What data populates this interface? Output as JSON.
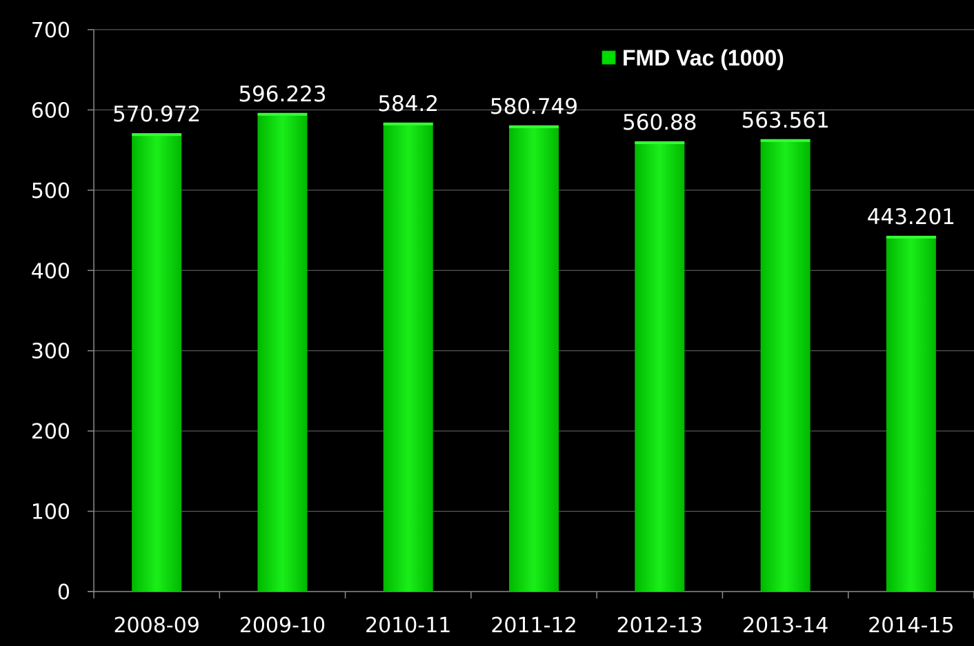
{
  "chart_data": {
    "type": "bar",
    "categories": [
      "2008-09",
      "2009-10",
      "2010-11",
      "2011-12",
      "2012-13",
      "2013-14",
      "2014-15"
    ],
    "series": [
      {
        "name": "FMD Vac (1000)",
        "values": [
          570.972,
          596.223,
          584.2,
          580.749,
          560.88,
          563.561,
          443.201
        ],
        "labels": [
          "570.972",
          "596.223",
          "584.2",
          "580.749",
          "560.88",
          "563.561",
          "443.201"
        ]
      }
    ],
    "yticks": [
      0,
      100,
      200,
      300,
      400,
      500,
      600,
      700
    ],
    "ylim": [
      0,
      700
    ],
    "title": "",
    "xlabel": "",
    "ylabel": "",
    "grid": true,
    "legend_position": "top-right",
    "colors": {
      "background": "#000000",
      "bar_fill": "#00dd00",
      "bar_light": "#33ff33",
      "bar_dark": "#00b800",
      "grid": "#6e6e6e",
      "axis": "#8c8c8c",
      "text": "#ffffff"
    }
  }
}
